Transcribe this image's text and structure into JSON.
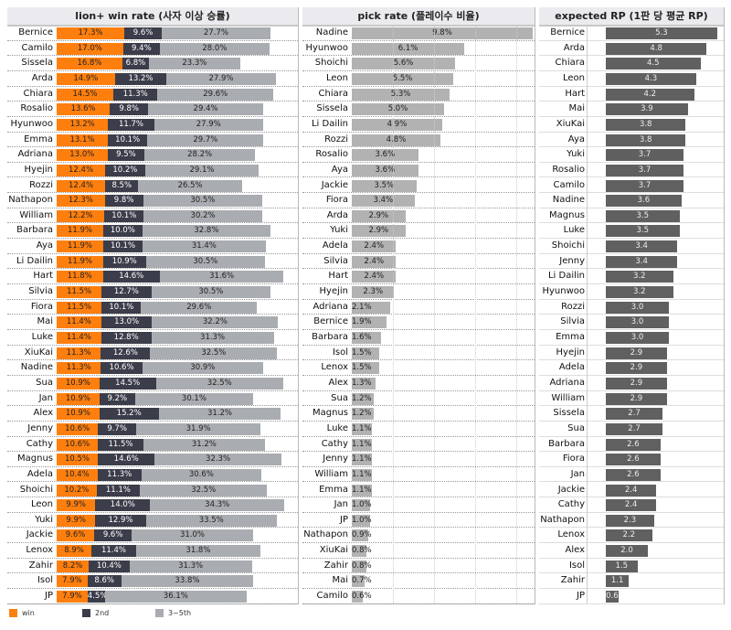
{
  "colors": {
    "win": "#ff7f0e",
    "second": "#3c3d4a",
    "third_fifth": "#a9acb0",
    "pick": "#b2b2b2",
    "rp": "#606060"
  },
  "legend": [
    {
      "key": "win",
      "label": "win"
    },
    {
      "key": "second",
      "label": "2nd"
    },
    {
      "key": "third_fifth",
      "label": "3~5th"
    }
  ],
  "chart_data": [
    {
      "type": "bar",
      "stacked": true,
      "orientation": "horizontal",
      "title": "lion+ win rate (사자 이상 승률)",
      "unit": "%",
      "series_names": [
        "win",
        "2nd",
        "3~5th"
      ],
      "categories": [
        "Bernice",
        "Camilo",
        "Sissela",
        "Arda",
        "Chiara",
        "Rosalio",
        "Hyunwoo",
        "Emma",
        "Adriana",
        "Hyejin",
        "Rozzi",
        "Nathapon",
        "William",
        "Barbara",
        "Aya",
        "Li Dailin",
        "Hart",
        "Silvia",
        "Fiora",
        "Mai",
        "Luke",
        "XiuKai",
        "Nadine",
        "Sua",
        "Jan",
        "Alex",
        "Jenny",
        "Cathy",
        "Magnus",
        "Adela",
        "Shoichi",
        "Leon",
        "Yuki",
        "Jackie",
        "Lenox",
        "Zahir",
        "Isol",
        "JP"
      ],
      "series": [
        {
          "name": "win",
          "values": [
            17.3,
            17.0,
            16.8,
            14.9,
            14.5,
            13.6,
            13.2,
            13.1,
            13.0,
            12.4,
            12.4,
            12.3,
            12.2,
            11.9,
            11.9,
            11.9,
            11.8,
            11.5,
            11.5,
            11.4,
            11.4,
            11.3,
            11.3,
            10.9,
            10.9,
            10.9,
            10.6,
            10.6,
            10.5,
            10.4,
            10.2,
            9.9,
            9.9,
            9.6,
            8.9,
            8.2,
            7.9,
            7.9
          ]
        },
        {
          "name": "2nd",
          "values": [
            9.6,
            9.4,
            6.8,
            13.2,
            11.3,
            9.8,
            11.7,
            10.1,
            9.5,
            10.2,
            8.5,
            9.8,
            10.1,
            10.0,
            10.1,
            10.9,
            14.6,
            12.7,
            10.1,
            13.0,
            12.8,
            12.6,
            10.6,
            14.5,
            9.2,
            15.2,
            9.7,
            11.5,
            14.6,
            11.3,
            11.1,
            14.0,
            12.9,
            9.6,
            11.4,
            10.4,
            8.6,
            4.5
          ]
        },
        {
          "name": "3~5th",
          "values": [
            27.7,
            28.0,
            23.3,
            27.9,
            29.6,
            29.4,
            27.9,
            29.7,
            28.2,
            29.1,
            26.5,
            30.5,
            30.2,
            32.8,
            31.4,
            30.5,
            31.6,
            30.5,
            29.6,
            32.2,
            31.3,
            32.5,
            30.9,
            32.5,
            30.1,
            31.2,
            31.9,
            31.2,
            32.3,
            30.6,
            32.5,
            34.3,
            33.5,
            31.0,
            31.8,
            31.3,
            33.8,
            36.1
          ]
        }
      ]
    },
    {
      "type": "bar",
      "orientation": "horizontal",
      "title": "pick rate (플레이수 비율)",
      "unit": "%",
      "categories": [
        "Nadine",
        "Hyunwoo",
        "Shoichi",
        "Leon",
        "Chiara",
        "Sissela",
        "Li Dailin",
        "Rozzi",
        "Rosalio",
        "Aya",
        "Jackie",
        "Fiora",
        "Arda",
        "Yuki",
        "Adela",
        "Silvia",
        "Hart",
        "Hyejin",
        "Adriana",
        "Bernice",
        "Barbara",
        "Isol",
        "Lenox",
        "Alex",
        "Sua",
        "Magnus",
        "Luke",
        "Cathy",
        "Jenny",
        "William",
        "Emma",
        "Jan",
        "JP",
        "Nathapon",
        "XiuKai",
        "Zahir",
        "Mai",
        "Camilo"
      ],
      "values": [
        9.8,
        6.1,
        5.6,
        5.5,
        5.3,
        5.0,
        4.9,
        4.8,
        3.6,
        3.6,
        3.5,
        3.4,
        2.9,
        2.9,
        2.4,
        2.4,
        2.4,
        2.3,
        2.1,
        1.9,
        1.6,
        1.5,
        1.5,
        1.3,
        1.2,
        1.2,
        1.1,
        1.1,
        1.1,
        1.1,
        1.1,
        1.0,
        1.0,
        0.9,
        0.8,
        0.8,
        0.7,
        0.6
      ]
    },
    {
      "type": "bar",
      "orientation": "horizontal",
      "title": "expected RP (1판 당 평균 RP)",
      "unit": "",
      "categories": [
        "Bernice",
        "Arda",
        "Chiara",
        "Leon",
        "Hart",
        "Mai",
        "XiuKai",
        "Aya",
        "Yuki",
        "Rosalio",
        "Camilo",
        "Nadine",
        "Magnus",
        "Luke",
        "Shoichi",
        "Jenny",
        "Li Dailin",
        "Hyunwoo",
        "Rozzi",
        "Silvia",
        "Emma",
        "Hyejin",
        "Adela",
        "Adriana",
        "William",
        "Sissela",
        "Sua",
        "Barbara",
        "Fiora",
        "Jan",
        "Jackie",
        "Cathy",
        "Nathapon",
        "Lenox",
        "Alex",
        "Isol",
        "Zahir",
        "JP"
      ],
      "values": [
        5.3,
        4.8,
        4.5,
        4.3,
        4.2,
        3.9,
        3.8,
        3.8,
        3.7,
        3.7,
        3.7,
        3.6,
        3.5,
        3.5,
        3.4,
        3.4,
        3.2,
        3.2,
        3.0,
        3.0,
        3.0,
        2.9,
        2.9,
        2.9,
        2.9,
        2.7,
        2.7,
        2.6,
        2.6,
        2.6,
        2.4,
        2.4,
        2.3,
        2.2,
        2.0,
        1.5,
        1.1,
        0.6
      ]
    }
  ]
}
